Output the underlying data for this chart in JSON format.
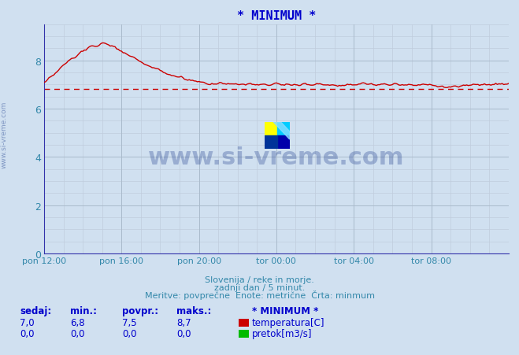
{
  "title": "* MINIMUM *",
  "title_color": "#0000cc",
  "bg_color": "#d0e0f0",
  "plot_bg_color": "#d0e0f0",
  "grid_color_major": "#aabbcc",
  "grid_color_minor": "#c0ccdd",
  "line_color": "#cc0000",
  "min_line_color": "#cc0000",
  "axis_color": "#3333aa",
  "tick_color": "#3388aa",
  "xlabel_color": "#3388aa",
  "xlabels": [
    "pon 12:00",
    "pon 16:00",
    "pon 20:00",
    "tor 00:00",
    "tor 04:00",
    "tor 08:00"
  ],
  "xtick_positions": [
    0,
    48,
    96,
    144,
    192,
    240
  ],
  "xlim": [
    0,
    288
  ],
  "ylim": [
    0,
    9.5
  ],
  "yticks": [
    0,
    2,
    4,
    6,
    8
  ],
  "ylabel_color": "#3388aa",
  "footer_line1": "Slovenija / reke in morje.",
  "footer_line2": "zadnji dan / 5 minut.",
  "footer_line3": "Meritve: povprečne  Enote: metrične  Črta: minmum",
  "footer_color": "#3388aa",
  "table_headers": [
    "sedaj:",
    "min.:",
    "povpr.:",
    "maks.:"
  ],
  "table_values_temp": [
    "7,0",
    "6,8",
    "7,5",
    "8,7"
  ],
  "table_values_flow": [
    "0,0",
    "0,0",
    "0,0",
    "0,0"
  ],
  "legend_title": "* MINIMUM *",
  "legend_temp": "temperatura[C]",
  "legend_flow": "pretok[m3/s]",
  "temp_color": "#cc0000",
  "flow_color": "#00bb00",
  "watermark_text": "www.si-vreme.com",
  "watermark_color": "#1a3a8a",
  "watermark_alpha": 0.3,
  "min_value": 6.8,
  "min_line_y": 6.8,
  "logo_yellow": "#ffff00",
  "logo_cyan": "#00ccff",
  "logo_blue": "#0000aa",
  "logo_darkblue": "#003399"
}
